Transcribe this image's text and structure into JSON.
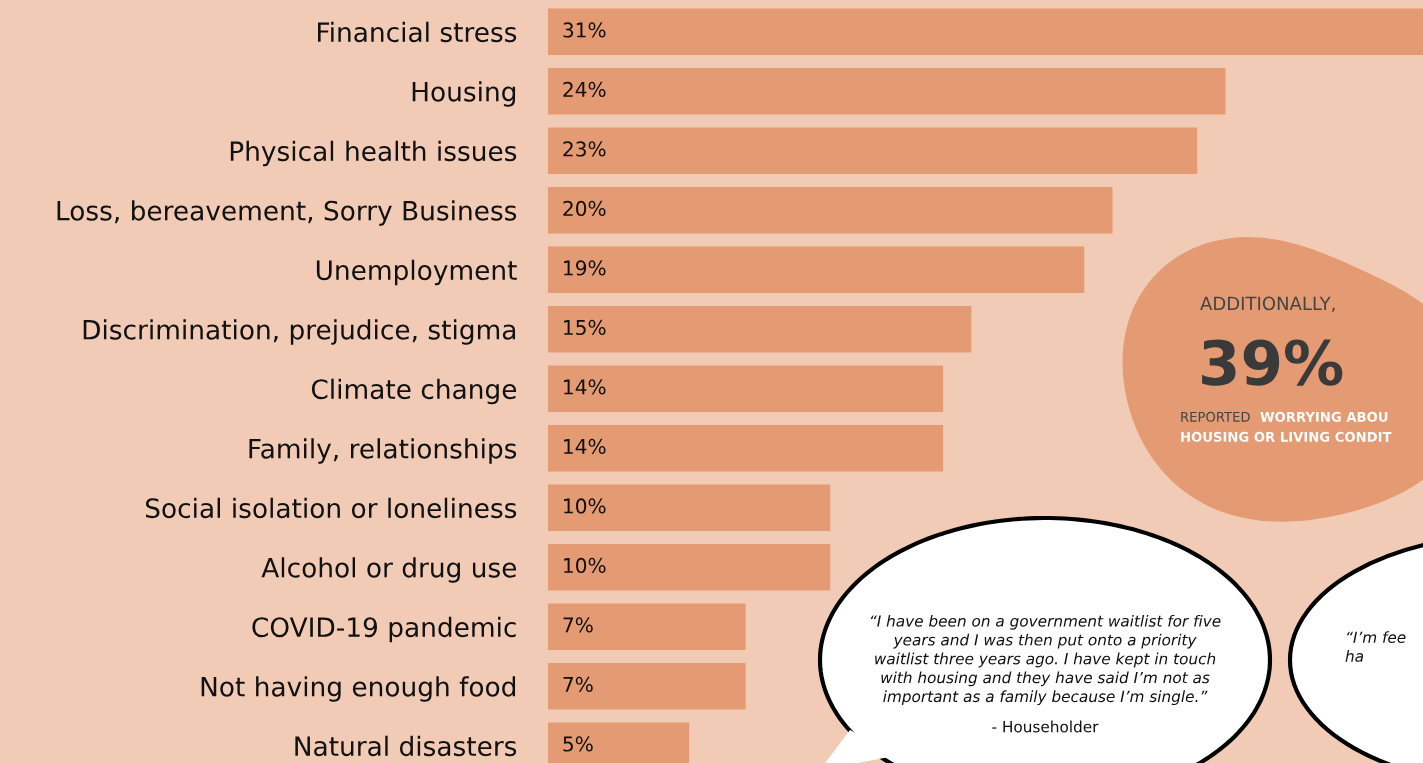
{
  "chart_data": {
    "type": "bar",
    "orientation": "horizontal",
    "categories": [
      "Financial stress",
      "Housing",
      "Physical health issues",
      "Loss, bereavement, Sorry Business",
      "Unemployment",
      "Discrimination, prejudice, stigma",
      "Climate change",
      "Family, relationships",
      "Social isolation or loneliness",
      "Alcohol or drug use",
      "COVID-19 pandemic",
      "Not having enough food",
      "Natural disasters"
    ],
    "values": [
      31,
      24,
      23,
      20,
      19,
      15,
      14,
      14,
      10,
      10,
      7,
      7,
      5
    ],
    "value_labels": [
      "31%",
      "24%",
      "23%",
      "20%",
      "19%",
      "15%",
      "14%",
      "14%",
      "10%",
      "10%",
      "7%",
      "7%",
      "5%"
    ],
    "color": "#e49a72",
    "annotations": [
      "ADDITIONALLY,",
      "39%",
      "REPORTED",
      "WORRYING ABOU\nHOUSING OR LIVING CONDIT",
      "“I have been on a government waitlist for five\nyears and I was then put onto a priority\nwaitlist three years ago. I have kept in touch\nwith housing and they have said I’m not as\nimportant as a family because I’m single.”",
      "- Householder",
      "“I’m fee\nha"
    ]
  }
}
